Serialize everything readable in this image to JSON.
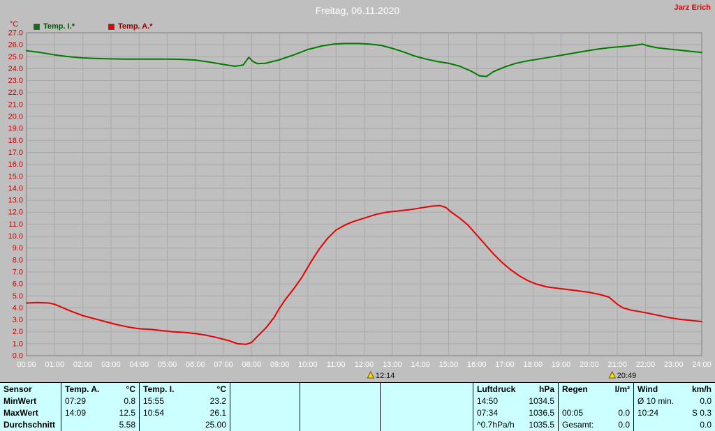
{
  "header": {
    "title": "Freitag, 06.11.2020",
    "user": "Jarz Erich"
  },
  "chart_data": {
    "type": "line",
    "title": "Freitag, 06.11.2020",
    "ylabel": "°C",
    "xlabel": "",
    "ylim": [
      0,
      27
    ],
    "xlim_hours": [
      0,
      24
    ],
    "y_tick_step": 1.0,
    "grid": true,
    "legend_position": "top-left",
    "colors": {
      "background": "#bfbfbf",
      "grid": "#a9a9a9",
      "frame": "#7c7c7c",
      "y_labels": "#cc0000",
      "x_labels": "#ffffff",
      "marker": "#ffdf00"
    },
    "x_tick_labels": [
      "00:00",
      "01:00",
      "02:00",
      "03:00",
      "04:00",
      "05:00",
      "06:00",
      "07:00",
      "08:00",
      "09:00",
      "10:00",
      "11:00",
      "12:00",
      "13:00",
      "14:00",
      "15:00",
      "16:00",
      "17:00",
      "18:00",
      "19:00",
      "20:00",
      "21:00",
      "22:00",
      "23:00",
      "24:00"
    ],
    "series": [
      {
        "name": "Temp. I.*",
        "color": "#007a00",
        "points": [
          [
            0,
            25.5
          ],
          [
            0.5,
            25.35
          ],
          [
            1,
            25.15
          ],
          [
            1.5,
            25.0
          ],
          [
            2,
            24.9
          ],
          [
            2.5,
            24.85
          ],
          [
            3,
            24.82
          ],
          [
            3.5,
            24.8
          ],
          [
            4,
            24.8
          ],
          [
            4.5,
            24.8
          ],
          [
            5,
            24.8
          ],
          [
            5.5,
            24.78
          ],
          [
            6,
            24.72
          ],
          [
            6.5,
            24.55
          ],
          [
            7,
            24.35
          ],
          [
            7.4,
            24.2
          ],
          [
            7.7,
            24.3
          ],
          [
            7.9,
            24.95
          ],
          [
            8.05,
            24.6
          ],
          [
            8.2,
            24.42
          ],
          [
            8.5,
            24.45
          ],
          [
            9,
            24.75
          ],
          [
            9.5,
            25.15
          ],
          [
            10,
            25.6
          ],
          [
            10.5,
            25.9
          ],
          [
            10.9,
            26.05
          ],
          [
            11.3,
            26.1
          ],
          [
            11.8,
            26.1
          ],
          [
            12.2,
            26.05
          ],
          [
            12.6,
            25.95
          ],
          [
            13,
            25.7
          ],
          [
            13.4,
            25.4
          ],
          [
            13.8,
            25.05
          ],
          [
            14.2,
            24.8
          ],
          [
            14.6,
            24.6
          ],
          [
            15,
            24.45
          ],
          [
            15.4,
            24.2
          ],
          [
            15.8,
            23.8
          ],
          [
            16.1,
            23.4
          ],
          [
            16.35,
            23.35
          ],
          [
            16.6,
            23.75
          ],
          [
            17,
            24.15
          ],
          [
            17.4,
            24.45
          ],
          [
            17.8,
            24.65
          ],
          [
            18.2,
            24.8
          ],
          [
            18.7,
            25.0
          ],
          [
            19.2,
            25.2
          ],
          [
            19.7,
            25.4
          ],
          [
            20.2,
            25.6
          ],
          [
            20.7,
            25.75
          ],
          [
            21.2,
            25.85
          ],
          [
            21.6,
            25.95
          ],
          [
            21.9,
            26.05
          ],
          [
            22.1,
            25.9
          ],
          [
            22.4,
            25.75
          ],
          [
            22.8,
            25.65
          ],
          [
            23.2,
            25.55
          ],
          [
            23.6,
            25.45
          ],
          [
            24,
            25.35
          ]
        ]
      },
      {
        "name": "Temp. A.*",
        "color": "#e60000",
        "points": [
          [
            0,
            4.4
          ],
          [
            0.4,
            4.45
          ],
          [
            0.8,
            4.4
          ],
          [
            1,
            4.3
          ],
          [
            1.3,
            4.0
          ],
          [
            1.6,
            3.7
          ],
          [
            2,
            3.35
          ],
          [
            2.4,
            3.1
          ],
          [
            2.8,
            2.85
          ],
          [
            3.2,
            2.6
          ],
          [
            3.6,
            2.4
          ],
          [
            4,
            2.25
          ],
          [
            4.4,
            2.2
          ],
          [
            4.8,
            2.1
          ],
          [
            5.2,
            2.0
          ],
          [
            5.6,
            1.95
          ],
          [
            6,
            1.85
          ],
          [
            6.4,
            1.7
          ],
          [
            6.8,
            1.5
          ],
          [
            7.2,
            1.25
          ],
          [
            7.5,
            1.0
          ],
          [
            7.8,
            0.95
          ],
          [
            8,
            1.1
          ],
          [
            8.2,
            1.6
          ],
          [
            8.5,
            2.3
          ],
          [
            8.8,
            3.2
          ],
          [
            9,
            4.0
          ],
          [
            9.2,
            4.7
          ],
          [
            9.5,
            5.6
          ],
          [
            9.8,
            6.6
          ],
          [
            10.1,
            7.8
          ],
          [
            10.4,
            8.9
          ],
          [
            10.7,
            9.8
          ],
          [
            11,
            10.5
          ],
          [
            11.3,
            10.9
          ],
          [
            11.6,
            11.2
          ],
          [
            12,
            11.5
          ],
          [
            12.4,
            11.8
          ],
          [
            12.8,
            12.0
          ],
          [
            13.2,
            12.1
          ],
          [
            13.6,
            12.2
          ],
          [
            14,
            12.35
          ],
          [
            14.4,
            12.5
          ],
          [
            14.7,
            12.55
          ],
          [
            14.9,
            12.4
          ],
          [
            15.1,
            12.0
          ],
          [
            15.4,
            11.5
          ],
          [
            15.7,
            10.9
          ],
          [
            16,
            10.1
          ],
          [
            16.3,
            9.3
          ],
          [
            16.6,
            8.5
          ],
          [
            16.9,
            7.8
          ],
          [
            17.2,
            7.2
          ],
          [
            17.5,
            6.7
          ],
          [
            17.8,
            6.3
          ],
          [
            18.1,
            6.0
          ],
          [
            18.5,
            5.75
          ],
          [
            19,
            5.6
          ],
          [
            19.5,
            5.45
          ],
          [
            20,
            5.3
          ],
          [
            20.4,
            5.1
          ],
          [
            20.7,
            4.9
          ],
          [
            21,
            4.3
          ],
          [
            21.2,
            4.0
          ],
          [
            21.5,
            3.8
          ],
          [
            22,
            3.6
          ],
          [
            22.4,
            3.4
          ],
          [
            22.8,
            3.2
          ],
          [
            23.2,
            3.05
          ],
          [
            23.6,
            2.95
          ],
          [
            24,
            2.85
          ]
        ]
      }
    ],
    "event_markers": [
      {
        "time": "12:14"
      },
      {
        "time": "20:49"
      }
    ]
  },
  "table": {
    "row_labels": [
      "Sensor",
      "MinWert",
      "MaxWert",
      "Durchschnitt"
    ],
    "groups": [
      {
        "header": "Temp. A.",
        "unit": "°C",
        "rows": [
          [
            "07:29",
            "0.8"
          ],
          [
            "14:09",
            "12.5"
          ],
          [
            "",
            "5.58"
          ]
        ]
      },
      {
        "header": "Temp. I.",
        "unit": "°C",
        "rows": [
          [
            "15:55",
            "23.2"
          ],
          [
            "10:54",
            "26.1"
          ],
          [
            "",
            "25.00"
          ]
        ]
      },
      {
        "header": "",
        "unit": "",
        "rows": [
          [
            "",
            ""
          ],
          [
            "",
            ""
          ],
          [
            "",
            ""
          ]
        ]
      },
      {
        "header": "",
        "unit": "",
        "rows": [
          [
            "",
            ""
          ],
          [
            "",
            ""
          ],
          [
            "",
            ""
          ]
        ]
      },
      {
        "header": "",
        "unit": "",
        "rows": [
          [
            "",
            ""
          ],
          [
            "",
            ""
          ],
          [
            "",
            ""
          ]
        ]
      },
      {
        "header": "Luftdruck",
        "unit": "hPa",
        "rows": [
          [
            "14:50",
            "1034.5"
          ],
          [
            "07:34",
            "1036.5"
          ],
          [
            "^0.7hPa/h",
            "1035.5"
          ]
        ]
      },
      {
        "header": "Regen",
        "unit": "l/m²",
        "rows": [
          [
            "",
            ""
          ],
          [
            "00:05",
            "0.0"
          ],
          [
            "Gesamt:",
            "0.0"
          ]
        ]
      },
      {
        "header": "Wind",
        "unit": "km/h",
        "rows": [
          [
            "Ø 10 min.",
            "0.0"
          ],
          [
            "10:24",
            "S 0.3"
          ],
          [
            "",
            "0.0"
          ]
        ]
      }
    ]
  }
}
